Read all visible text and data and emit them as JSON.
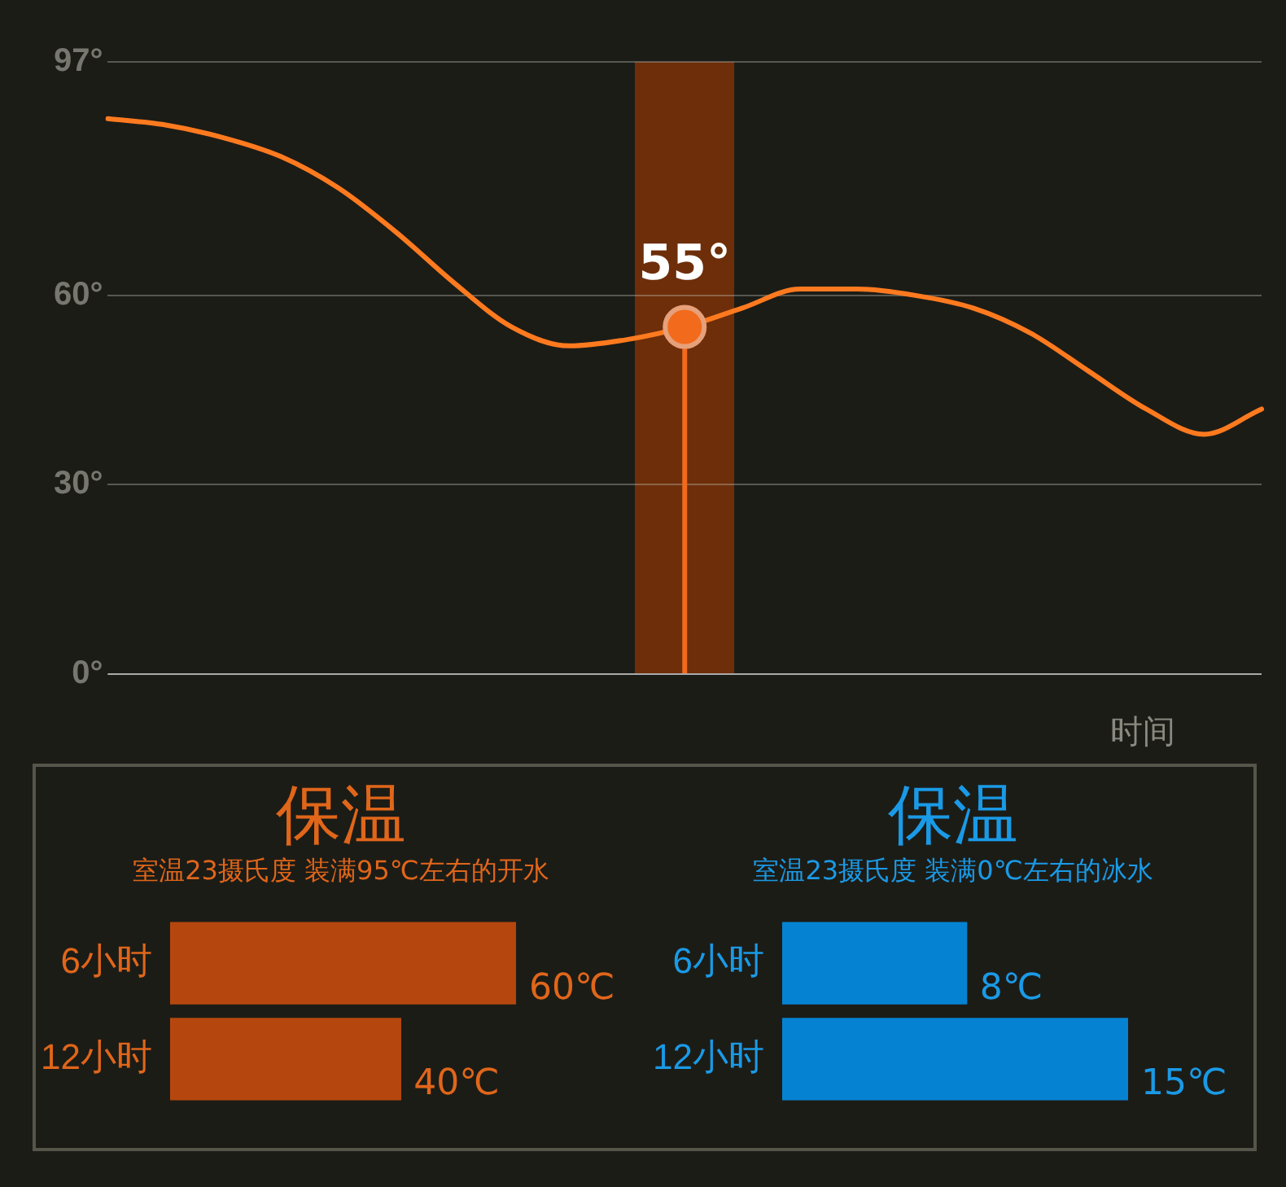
{
  "chart_data": [
    {
      "type": "line",
      "xlabel": "时间",
      "categories": [
        null,
        null,
        null,
        null,
        null,
        null,
        null,
        null,
        null,
        null,
        null,
        null,
        null,
        null,
        null,
        null,
        null,
        null,
        null,
        null,
        null
      ],
      "ylim": [
        0,
        97
      ],
      "yticks": [
        {
          "value": 0,
          "label": "0°"
        },
        {
          "value": 30,
          "label": "30°"
        },
        {
          "value": 60,
          "label": "60°"
        },
        {
          "value": 97,
          "label": "97°"
        }
      ],
      "tick_labels": "y",
      "grid": "y",
      "legend": false,
      "marker": "none",
      "line_style": "solid",
      "series": [
        {
          "type": "line",
          "color": "#ff7a1f",
          "values": [
            88,
            87,
            85,
            82,
            77,
            70,
            62,
            55,
            52,
            53,
            55,
            58,
            61,
            61,
            60,
            58,
            54,
            48,
            42,
            38,
            42
          ]
        },
        {
          "type": "lollipop",
          "color": "#f26a1b",
          "marker": "circle",
          "values": [
            null,
            null,
            null,
            null,
            null,
            null,
            null,
            null,
            null,
            null,
            55,
            null,
            null,
            null,
            null,
            null,
            null,
            null,
            null,
            null,
            null
          ]
        }
      ],
      "annotations": [
        {
          "text": "55°",
          "y": 55
        }
      ]
    },
    {
      "type": "bar",
      "orientation": "horizontal",
      "title": "保温",
      "subtitle": "室温23摄氏度 装满95℃左右的开水",
      "categories": [
        "6小时",
        "12小时"
      ],
      "values": [
        60,
        40
      ],
      "value_labels": [
        "60℃",
        "40℃"
      ],
      "color": "#b5470e",
      "tick_labels": "y",
      "legend": false,
      "grid": false
    },
    {
      "type": "bar",
      "orientation": "horizontal",
      "title": "保温",
      "subtitle": "室温23摄氏度 装满0℃左右的冰水",
      "categories": [
        "6小时",
        "12小时"
      ],
      "values": [
        8,
        15
      ],
      "value_labels": [
        "8℃",
        "15℃"
      ],
      "color": "#0583d2",
      "tick_labels": "y",
      "legend": false,
      "grid": false
    }
  ]
}
